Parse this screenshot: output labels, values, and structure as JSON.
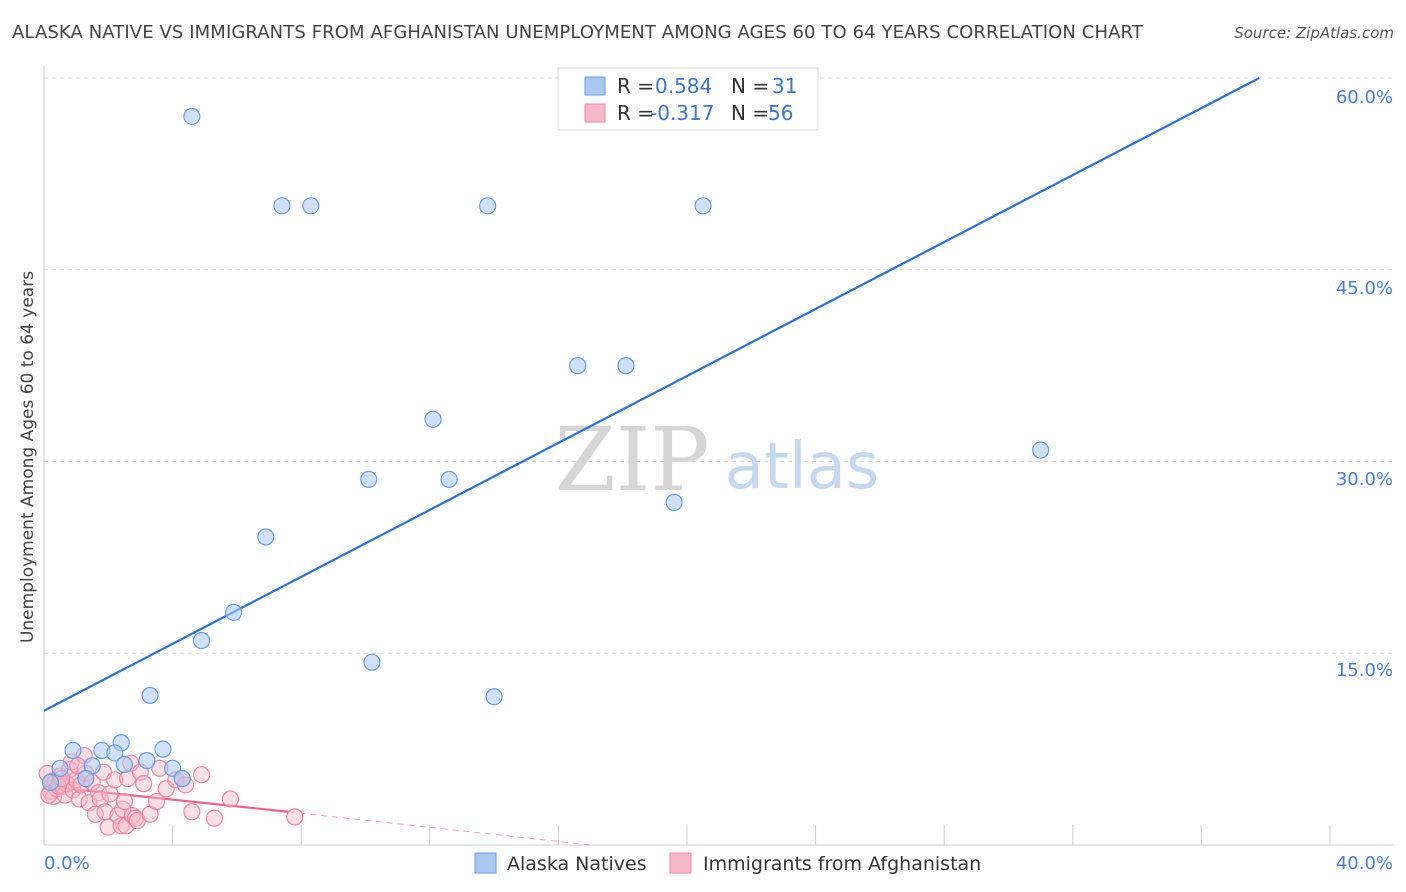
{
  "header": {
    "title": "ALASKA NATIVE VS IMMIGRANTS FROM AFGHANISTAN UNEMPLOYMENT AMONG AGES 60 TO 64 YEARS CORRELATION CHART",
    "source": "Source: ZipAtlas.com"
  },
  "watermark": {
    "zip": "ZIP",
    "atlas": "atlas"
  },
  "legend": {
    "r_label": "R =",
    "n_label": "N =",
    "series1": {
      "r": "0.584",
      "n": "31"
    },
    "series2": {
      "r": "-0.317",
      "n": "56"
    }
  },
  "bottom_legend": {
    "series1": "Alaska Natives",
    "series2": "Immigrants from Afghanistan"
  },
  "colors": {
    "blue_fill": "#a9c8f0",
    "blue_stroke": "#6a9de0",
    "blue_line": "#2f72c9",
    "pink_fill": "#f6b7c9",
    "pink_stroke": "#ee87a6",
    "pink_line": "#e8648e",
    "grid": "#d9d9d9",
    "tick_text": "#4a7fd0"
  },
  "chart_data": {
    "type": "scatter",
    "title": "ALASKA NATIVE VS IMMIGRANTS FROM AFGHANISTAN UNEMPLOYMENT AMONG AGES 60 TO 64 YEARS CORRELATION CHART",
    "xlabel": "",
    "ylabel": "Unemployment Among Ages 60 to 64 years",
    "xlim": [
      0,
      40
    ],
    "ylim": [
      0,
      60
    ],
    "x_tick_labels": [
      "0.0%",
      "40.0%"
    ],
    "y_ticks": [
      15,
      30,
      45,
      60
    ],
    "y_tick_labels": [
      "15.0%",
      "30.0%",
      "45.0%",
      "60.0%"
    ],
    "series": [
      {
        "name": "Alaska Natives",
        "r": 0.584,
        "n": 31,
        "trend": {
          "x0": 0,
          "y0": 10.5,
          "x1": 37.8,
          "y1": 60
        },
        "points": [
          [
            4.6,
            57.0
          ],
          [
            7.4,
            50.0
          ],
          [
            8.3,
            50.0
          ],
          [
            13.8,
            50.0
          ],
          [
            20.5,
            50.0
          ],
          [
            16.6,
            37.5
          ],
          [
            18.1,
            37.5
          ],
          [
            12.1,
            33.3
          ],
          [
            10.1,
            28.6
          ],
          [
            12.6,
            28.6
          ],
          [
            31.0,
            30.9
          ],
          [
            19.6,
            26.8
          ],
          [
            6.9,
            24.1
          ],
          [
            5.9,
            18.2
          ],
          [
            4.9,
            16.0
          ],
          [
            10.2,
            14.3
          ],
          [
            3.3,
            11.7
          ],
          [
            14.0,
            11.6
          ],
          [
            2.4,
            8.0
          ],
          [
            1.8,
            7.4
          ],
          [
            2.2,
            7.2
          ],
          [
            0.9,
            7.4
          ],
          [
            3.7,
            7.5
          ],
          [
            3.2,
            6.6
          ],
          [
            2.5,
            6.3
          ],
          [
            4.0,
            6.0
          ],
          [
            4.3,
            5.2
          ],
          [
            0.5,
            6.0
          ],
          [
            1.5,
            6.2
          ],
          [
            0.2,
            4.9
          ],
          [
            1.3,
            5.2
          ]
        ]
      },
      {
        "name": "Immigrants from Afghanistan",
        "r": -0.317,
        "n": 56,
        "trend": {
          "x0": 0,
          "y0": 4.6,
          "x1": 7.6,
          "y1": 2.6
        },
        "trend_extension": {
          "x0": 7.6,
          "y0": 2.6,
          "x1": 17.0,
          "y1": 0
        },
        "points": [
          [
            0.1,
            5.6
          ],
          [
            0.2,
            4.2
          ],
          [
            0.25,
            5.0
          ],
          [
            0.3,
            3.8
          ],
          [
            0.35,
            4.9
          ],
          [
            0.4,
            4.4
          ],
          [
            0.5,
            5.4
          ],
          [
            0.6,
            4.6
          ],
          [
            0.65,
            3.9
          ],
          [
            0.7,
            4.8
          ],
          [
            0.8,
            5.9
          ],
          [
            0.85,
            6.5
          ],
          [
            0.9,
            4.3
          ],
          [
            1.0,
            5.1
          ],
          [
            1.1,
            3.6
          ],
          [
            1.15,
            4.7
          ],
          [
            1.25,
            7.0
          ],
          [
            1.3,
            5.6
          ],
          [
            1.4,
            3.3
          ],
          [
            1.5,
            4.9
          ],
          [
            1.6,
            2.4
          ],
          [
            1.7,
            4.1
          ],
          [
            1.75,
            3.6
          ],
          [
            1.85,
            5.7
          ],
          [
            1.9,
            2.6
          ],
          [
            2.0,
            1.4
          ],
          [
            2.05,
            4.0
          ],
          [
            2.2,
            5.1
          ],
          [
            2.3,
            2.3
          ],
          [
            2.4,
            1.5
          ],
          [
            2.45,
            2.8
          ],
          [
            2.5,
            3.4
          ],
          [
            2.55,
            1.5
          ],
          [
            2.6,
            5.2
          ],
          [
            2.7,
            6.4
          ],
          [
            2.75,
            2.3
          ],
          [
            2.85,
            2.1
          ],
          [
            2.9,
            1.9
          ],
          [
            3.0,
            5.7
          ],
          [
            3.1,
            4.8
          ],
          [
            3.3,
            2.4
          ],
          [
            3.5,
            3.4
          ],
          [
            3.6,
            6.0
          ],
          [
            3.8,
            4.4
          ],
          [
            4.1,
            5.1
          ],
          [
            4.3,
            5.2
          ],
          [
            4.4,
            4.7
          ],
          [
            4.6,
            2.6
          ],
          [
            4.9,
            5.5
          ],
          [
            5.3,
            2.1
          ],
          [
            5.8,
            3.6
          ],
          [
            7.8,
            2.2
          ],
          [
            0.15,
            3.9
          ],
          [
            0.45,
            4.6
          ],
          [
            1.05,
            6.2
          ],
          [
            0.55,
            5.2
          ]
        ]
      }
    ]
  }
}
